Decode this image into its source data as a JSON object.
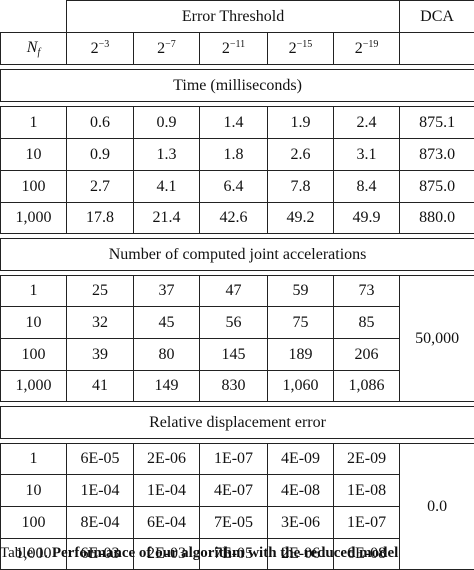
{
  "header": {
    "error_threshold_label": "Error Threshold",
    "dca_label": "DCA",
    "nf_symbol": "N",
    "nf_subscript": "f",
    "threshold_base": "2",
    "thresholds": [
      "−3",
      "−7",
      "−11",
      "−15",
      "−19"
    ]
  },
  "sections": [
    {
      "title": "Time (milliseconds)",
      "rows": [
        {
          "nf": "1",
          "values": [
            "0.6",
            "0.9",
            "1.4",
            "1.9",
            "2.4"
          ],
          "dca": "875.1"
        },
        {
          "nf": "10",
          "values": [
            "0.9",
            "1.3",
            "1.8",
            "2.6",
            "3.1"
          ],
          "dca": "873.0"
        },
        {
          "nf": "100",
          "values": [
            "2.7",
            "4.1",
            "6.4",
            "7.8",
            "8.4"
          ],
          "dca": "875.0"
        },
        {
          "nf": "1,000",
          "values": [
            "17.8",
            "21.4",
            "42.6",
            "49.2",
            "49.9"
          ],
          "dca": "880.0"
        }
      ]
    },
    {
      "title": "Number of computed joint accelerations",
      "dca_merged": "50,000",
      "rows": [
        {
          "nf": "1",
          "values": [
            "25",
            "37",
            "47",
            "59",
            "73"
          ]
        },
        {
          "nf": "10",
          "values": [
            "32",
            "45",
            "56",
            "75",
            "85"
          ]
        },
        {
          "nf": "100",
          "values": [
            "39",
            "80",
            "145",
            "189",
            "206"
          ]
        },
        {
          "nf": "1,000",
          "values": [
            "41",
            "149",
            "830",
            "1,060",
            "1,086"
          ]
        }
      ]
    },
    {
      "title": "Relative displacement error",
      "dca_merged": "0.0",
      "rows": [
        {
          "nf": "1",
          "values": [
            "6E-05",
            "2E-06",
            "1E-07",
            "4E-09",
            "2E-09"
          ]
        },
        {
          "nf": "10",
          "values": [
            "1E-04",
            "1E-04",
            "4E-07",
            "4E-08",
            "1E-08"
          ]
        },
        {
          "nf": "100",
          "values": [
            "8E-04",
            "6E-04",
            "7E-05",
            "3E-06",
            "1E-07"
          ]
        },
        {
          "nf": "1,000",
          "values": [
            "6E-03",
            "2E-03",
            "7E-05",
            "2E-06",
            "6E-08"
          ]
        }
      ]
    }
  ],
  "caption": {
    "prefix": "Table 1. ",
    "bold": "Performance of our algorithm with the reduced model"
  }
}
